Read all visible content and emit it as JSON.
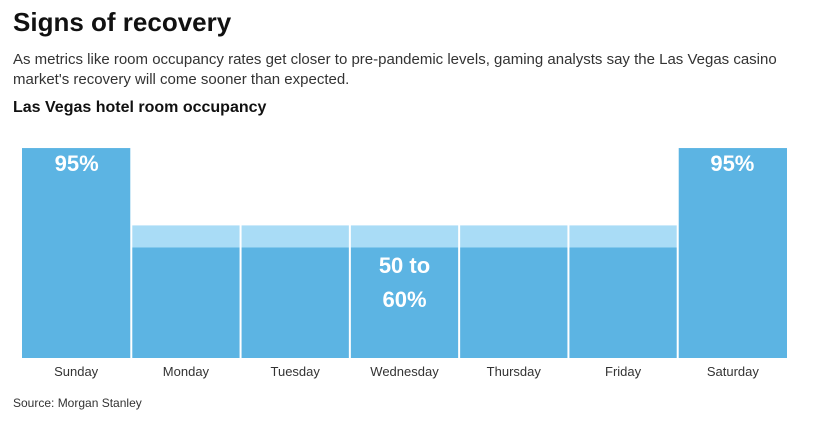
{
  "header": {
    "title": "Signs of recovery",
    "subtitle": "As metrics like room occupancy rates get closer to pre-pandemic levels, gaming analysts say the Las Vegas casino market's recovery will come sooner than expected."
  },
  "chart_title": "Las Vegas hotel room occupancy",
  "source": "Source: Morgan Stanley",
  "colors": {
    "bar": "#5cb4e3",
    "range_band": "#a9dcf6",
    "label": "#ffffff",
    "tick": "#333333"
  },
  "chart_data": {
    "type": "bar",
    "title": "Las Vegas hotel room occupancy",
    "categories": [
      "Sunday",
      "Monday",
      "Tuesday",
      "Wednesday",
      "Thursday",
      "Friday",
      "Saturday"
    ],
    "values": [
      95,
      50,
      50,
      50,
      50,
      50,
      95
    ],
    "range_upper": [
      95,
      60,
      60,
      60,
      60,
      60,
      95
    ],
    "ylim": [
      0,
      100
    ],
    "annotations": [
      {
        "category": "Sunday",
        "lines": [
          "95%"
        ]
      },
      {
        "category": "Wednesday",
        "lines": [
          "50 to",
          "60%"
        ]
      },
      {
        "category": "Saturday",
        "lines": [
          "95%"
        ]
      }
    ]
  }
}
